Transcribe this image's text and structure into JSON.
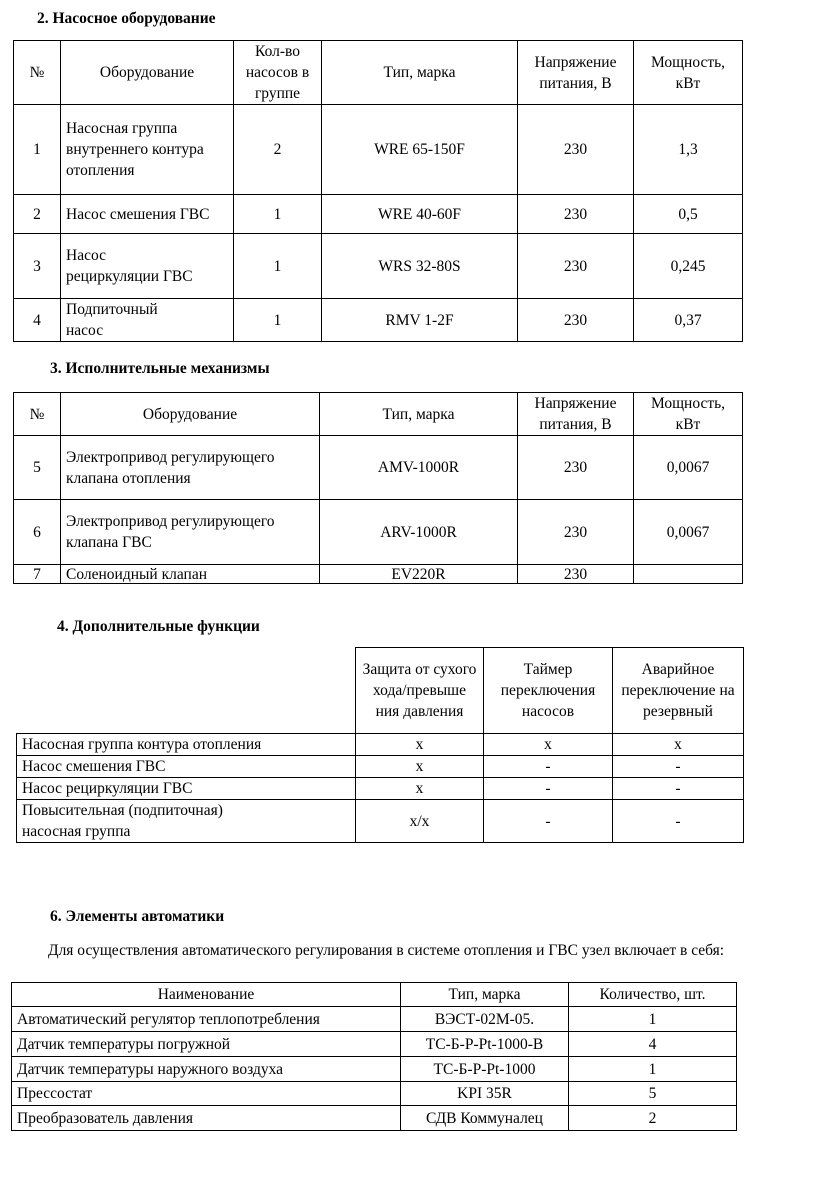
{
  "s2": {
    "title": "2.  Насосное оборудование",
    "headers": [
      "№",
      "Оборудование",
      "Кол-во насосов в группе",
      "Тип, марка",
      "Напряжение питания, В",
      "Мощность, кВт"
    ],
    "rows": [
      [
        "1",
        "Насосная группа внутреннего контура отопления",
        "2",
        "WRE 65-150F",
        "230",
        "1,3"
      ],
      [
        "2",
        "Насос смешения ГВС",
        "1",
        "WRE 40-60F",
        "230",
        "0,5"
      ],
      [
        "3",
        "Насос рециркуляции ГВС",
        "1",
        "WRS 32-80S",
        "230",
        "0,245"
      ],
      [
        "4",
        "Подпиточный насос",
        "1",
        "RMV 1-2F",
        "230",
        "0,37"
      ]
    ]
  },
  "s3": {
    "title": "3.   Исполнительные механизмы",
    "headers": [
      "№",
      "Оборудование",
      "Тип, марка",
      "Напряжение питания, В",
      "Мощность, кВт"
    ],
    "rows": [
      [
        "5",
        "Электропривод регулирующего клапана отопления",
        "AMV-1000R",
        "230",
        "0,0067"
      ],
      [
        "6",
        "Электропривод регулирующего клапана ГВС",
        "ARV-1000R",
        "230",
        "0,0067"
      ],
      [
        "7",
        "Соленоидный клапан",
        "EV220R",
        "230",
        ""
      ]
    ]
  },
  "s4": {
    "title": "4.  Дополнительные функции",
    "headers": [
      "Защита от сухого хода/превыше ния давления",
      "Таймер переключения насосов",
      "Аварийное переключение на резервный"
    ],
    "rows": [
      [
        "Насосная группа контура отопления",
        "x",
        "x",
        "x"
      ],
      [
        "Насос смешения ГВС",
        "x",
        "-",
        "-"
      ],
      [
        "Насос рециркуляции ГВС",
        "x",
        "-",
        "-"
      ],
      [
        "Повысительная (подпиточная) насосная группа",
        "x/x",
        "-",
        "-"
      ]
    ]
  },
  "s6": {
    "title": "6.   Элементы автоматики",
    "paragraph": "Для осуществления автоматического регулирования в системе отопления и ГВС узел включает в себя:",
    "headers": [
      "Наименование",
      "Тип, марка",
      "Количество, шт."
    ],
    "rows": [
      [
        "Автоматический регулятор теплопотребления",
        "ВЭСТ-02М-05.",
        "1"
      ],
      [
        "Датчик температуры погружной",
        "ТС-Б-Р-Pt-1000-В",
        "4"
      ],
      [
        "Датчик температуры наружного воздуха",
        "ТС-Б-Р-Pt-1000",
        "1"
      ],
      [
        "Прессостат",
        "KPI 35R",
        "5"
      ],
      [
        "Преобразователь давления",
        "СДВ Коммуналец",
        "2"
      ]
    ]
  }
}
